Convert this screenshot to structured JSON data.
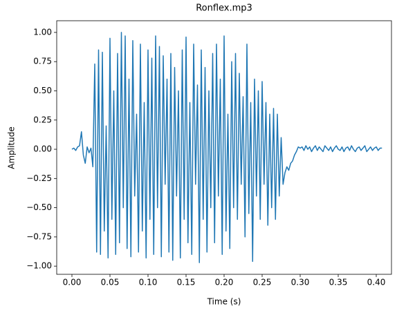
{
  "chart_data": {
    "type": "line",
    "title": "Ronflex.mp3",
    "xlabel": "Time (s)",
    "ylabel": "Amplitude",
    "xlim": [
      -0.02,
      0.42
    ],
    "ylim": [
      -1.07,
      1.1
    ],
    "xticks": [
      {
        "value": 0,
        "label": "0.00"
      },
      {
        "value": 0.05,
        "label": "0.05"
      },
      {
        "value": 0.1,
        "label": "0.10"
      },
      {
        "value": 0.15,
        "label": "0.15"
      },
      {
        "value": 0.2,
        "label": "0.20"
      },
      {
        "value": 0.25,
        "label": "0.25"
      },
      {
        "value": 0.3,
        "label": "0.30"
      },
      {
        "value": 0.35,
        "label": "0.35"
      },
      {
        "value": 0.4,
        "label": "0.40"
      }
    ],
    "yticks": [
      {
        "value": -1,
        "label": "−1.00"
      },
      {
        "value": -0.75,
        "label": "−0.75"
      },
      {
        "value": -0.5,
        "label": "−0.50"
      },
      {
        "value": -0.25,
        "label": "−0.25"
      },
      {
        "value": 0,
        "label": "0.00"
      },
      {
        "value": 0.25,
        "label": "0.25"
      },
      {
        "value": 0.5,
        "label": "0.50"
      },
      {
        "value": 0.75,
        "label": "0.75"
      },
      {
        "value": 1,
        "label": "1.00"
      }
    ],
    "x": [
      0,
      0.0025,
      0.005,
      0.0075,
      0.01,
      0.0125,
      0.015,
      0.0175,
      0.02,
      0.0225,
      0.025,
      0.0275,
      0.03,
      0.0325,
      0.035,
      0.0375,
      0.04,
      0.0425,
      0.045,
      0.0475,
      0.05,
      0.0525,
      0.055,
      0.0575,
      0.06,
      0.0625,
      0.065,
      0.0675,
      0.07,
      0.0725,
      0.075,
      0.0775,
      0.08,
      0.0825,
      0.085,
      0.0875,
      0.09,
      0.0925,
      0.095,
      0.0975,
      0.1,
      0.1025,
      0.105,
      0.1075,
      0.11,
      0.1125,
      0.115,
      0.1175,
      0.12,
      0.1225,
      0.125,
      0.1275,
      0.13,
      0.1325,
      0.135,
      0.1375,
      0.14,
      0.1425,
      0.145,
      0.1475,
      0.15,
      0.1525,
      0.155,
      0.1575,
      0.16,
      0.1625,
      0.165,
      0.1675,
      0.17,
      0.1725,
      0.175,
      0.1775,
      0.18,
      0.1825,
      0.185,
      0.1875,
      0.19,
      0.1925,
      0.195,
      0.1975,
      0.2,
      0.2025,
      0.205,
      0.2075,
      0.21,
      0.2125,
      0.215,
      0.2175,
      0.22,
      0.2225,
      0.225,
      0.2275,
      0.23,
      0.2325,
      0.235,
      0.2375,
      0.24,
      0.2425,
      0.245,
      0.2475,
      0.25,
      0.2525,
      0.255,
      0.2575,
      0.26,
      0.2625,
      0.265,
      0.2675,
      0.27,
      0.2725,
      0.275,
      0.2775,
      0.28,
      0.2825,
      0.285,
      0.2875,
      0.29,
      0.2925,
      0.295,
      0.2975,
      0.3,
      0.3025,
      0.305,
      0.3075,
      0.31,
      0.3125,
      0.315,
      0.3175,
      0.32,
      0.3225,
      0.325,
      0.3275,
      0.33,
      0.3325,
      0.335,
      0.3375,
      0.34,
      0.3425,
      0.345,
      0.3475,
      0.35,
      0.3525,
      0.355,
      0.3575,
      0.36,
      0.3625,
      0.365,
      0.3675,
      0.37,
      0.3725,
      0.375,
      0.3775,
      0.38,
      0.3825,
      0.385,
      0.3875,
      0.39,
      0.3925,
      0.395,
      0.3975,
      0.4,
      0.4025,
      0.405,
      0.4075
    ],
    "series": [
      {
        "color": "#1f77b4",
        "values": [
          0,
          0.01,
          -0.01,
          0.02,
          0.03,
          0.15,
          -0.05,
          -0.12,
          0.02,
          -0.03,
          0.01,
          -0.15,
          0.73,
          -0.88,
          0.85,
          -0.9,
          0.83,
          -0.7,
          0.2,
          -0.93,
          0.95,
          -0.6,
          0.5,
          -0.9,
          0.82,
          -0.8,
          1.0,
          -0.5,
          0.97,
          -0.85,
          0.6,
          -0.92,
          0.93,
          -0.4,
          0.3,
          -0.88,
          0.9,
          -0.7,
          0.4,
          -0.93,
          0.85,
          -0.6,
          0.78,
          -0.9,
          0.97,
          -0.5,
          0.88,
          -0.92,
          0.8,
          -0.3,
          0.6,
          -0.88,
          0.82,
          -0.95,
          0.7,
          -0.4,
          0.5,
          -0.93,
          0.85,
          -0.6,
          0.96,
          -0.8,
          0.4,
          -0.9,
          0.9,
          -0.3,
          0.55,
          -0.97,
          0.85,
          -0.6,
          0.7,
          -0.88,
          0.5,
          -0.5,
          0.82,
          -0.8,
          0.9,
          -0.4,
          0.6,
          -0.9,
          0.97,
          -0.7,
          0.3,
          -0.85,
          0.75,
          -0.5,
          0.82,
          -0.6,
          0.65,
          -0.3,
          0.45,
          -0.75,
          0.9,
          -0.55,
          0.4,
          -0.96,
          0.6,
          -0.4,
          0.5,
          -0.6,
          0.58,
          -0.3,
          0.4,
          -0.65,
          0.3,
          -0.5,
          0.35,
          -0.6,
          0.3,
          -0.4,
          0.1,
          -0.3,
          -0.2,
          -0.15,
          -0.18,
          -0.12,
          -0.1,
          -0.05,
          -0.02,
          0.02,
          0.01,
          0.02,
          -0.01,
          0.03,
          0,
          0.02,
          -0.02,
          0.01,
          0.03,
          -0.01,
          0.02,
          0,
          -0.02,
          0.03,
          0.01,
          -0.01,
          0.02,
          -0.02,
          0.01,
          0.03,
          0,
          -0.01,
          0.02,
          -0.02,
          0.01,
          0.02,
          -0.01,
          0.03,
          0,
          -0.02,
          0.01,
          0.02,
          -0.01,
          0.01,
          0.03,
          -0.02,
          0,
          0.02,
          -0.01,
          0.01,
          0.02,
          -0.01,
          0.01,
          0.01
        ]
      }
    ]
  }
}
